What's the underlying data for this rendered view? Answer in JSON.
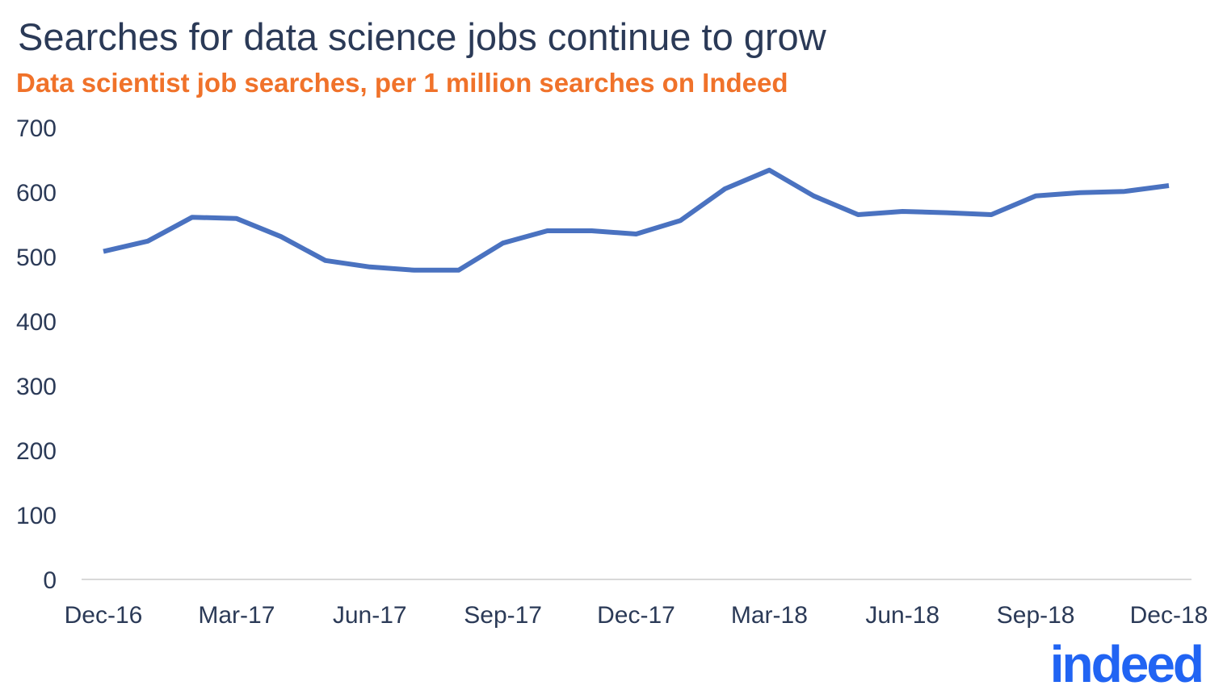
{
  "chart_data": {
    "type": "line",
    "title": "Searches for data science jobs continue to grow",
    "subtitle": "Data scientist job searches, per 1 million searches on Indeed",
    "x": [
      "Dec-16",
      "Jan-17",
      "Feb-17",
      "Mar-17",
      "Apr-17",
      "May-17",
      "Jun-17",
      "Jul-17",
      "Aug-17",
      "Sep-17",
      "Oct-17",
      "Nov-17",
      "Dec-17",
      "Jan-18",
      "Feb-18",
      "Mar-18",
      "Apr-18",
      "May-18",
      "Jun-18",
      "Jul-18",
      "Aug-18",
      "Sep-18",
      "Oct-18",
      "Nov-18",
      "Dec-18"
    ],
    "series": [
      {
        "values": [
          508,
          524,
          561,
          559,
          531,
          494,
          484,
          479,
          479,
          521,
          540,
          540,
          535,
          556,
          605,
          634,
          594,
          565,
          570,
          568,
          565,
          594,
          599,
          601,
          610
        ],
        "color": "#4a72c0"
      }
    ],
    "xtick_labels": [
      "Dec-16",
      "Mar-17",
      "Jun-17",
      "Sep-17",
      "Dec-17",
      "Mar-18",
      "Jun-18",
      "Sep-18",
      "Dec-18"
    ],
    "ytick_labels": [
      "0",
      "100",
      "200",
      "300",
      "400",
      "500",
      "600",
      "700"
    ],
    "ylim": [
      0,
      700
    ],
    "grid": false,
    "legend": "none"
  },
  "branding": {
    "logo_text": "indeed",
    "logo_color": "#2164f3"
  }
}
